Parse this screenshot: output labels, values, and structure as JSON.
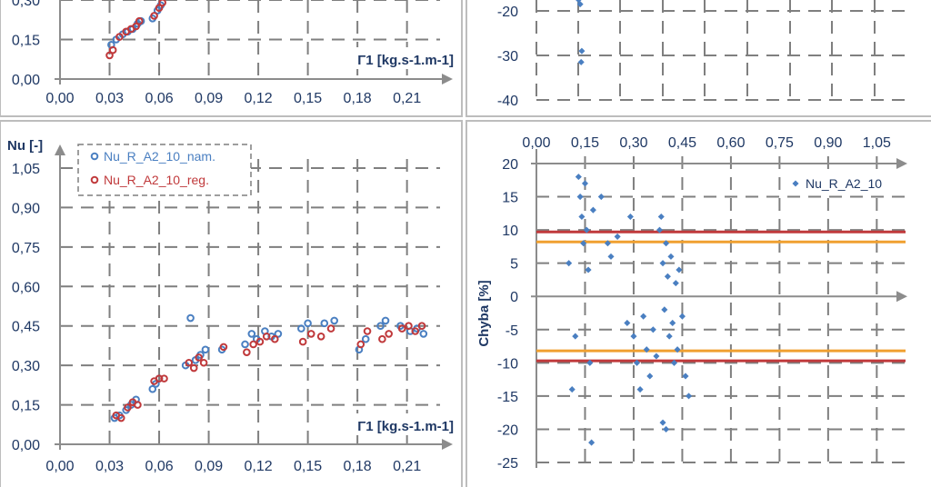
{
  "chart_data": [
    {
      "panel": "top-left",
      "type": "scatter",
      "xlabel": "Γ1 [kg.s-1.m-1]",
      "ylabel": "",
      "x_ticks": [
        "0,00",
        "0,03",
        "0,06",
        "0,09",
        "0,12",
        "0,15",
        "0,18",
        "0,21"
      ],
      "y_ticks": [
        "0,30",
        "0,15",
        "0,00"
      ],
      "xlim": [
        0,
        0.23
      ],
      "ylim": [
        0,
        0.3
      ],
      "grid": true,
      "series": [
        {
          "color": "#4a7fc1",
          "points": [
            [
              0.031,
              0.13
            ],
            [
              0.034,
              0.15
            ],
            [
              0.038,
              0.17
            ],
            [
              0.041,
              0.18
            ],
            [
              0.044,
              0.19
            ],
            [
              0.047,
              0.21
            ],
            [
              0.049,
              0.22
            ],
            [
              0.056,
              0.23
            ],
            [
              0.059,
              0.26
            ],
            [
              0.061,
              0.28
            ]
          ]
        },
        {
          "color": "#c0393b",
          "points": [
            [
              0.03,
              0.09
            ],
            [
              0.032,
              0.11
            ],
            [
              0.036,
              0.16
            ],
            [
              0.04,
              0.18
            ],
            [
              0.043,
              0.19
            ],
            [
              0.046,
              0.2
            ],
            [
              0.048,
              0.22
            ],
            [
              0.057,
              0.24
            ],
            [
              0.06,
              0.27
            ],
            [
              0.062,
              0.29
            ]
          ]
        }
      ]
    },
    {
      "panel": "top-right",
      "type": "scatter",
      "y_ticks": [
        "-20",
        "-30",
        "-40"
      ],
      "ylim": [
        -40,
        -15
      ],
      "grid": true,
      "series": [
        {
          "color": "#4a7fc1",
          "points": [
            [
              0.13,
              -17.5
            ],
            [
              0.135,
              -18.5
            ],
            [
              0.14,
              -29
            ],
            [
              0.138,
              -31.5
            ]
          ]
        }
      ]
    },
    {
      "panel": "bottom-left",
      "type": "scatter",
      "xlabel": "Γ1 [kg.s-1.m-1]",
      "ylabel": "Nu [-]",
      "x_ticks": [
        "0,00",
        "0,03",
        "0,06",
        "0,09",
        "0,12",
        "0,15",
        "0,18",
        "0,21"
      ],
      "y_ticks": [
        "0,00",
        "0,15",
        "0,30",
        "0,45",
        "0,60",
        "0,75",
        "0,90",
        "1,05"
      ],
      "xlim": [
        0,
        0.23
      ],
      "ylim": [
        0,
        1.05
      ],
      "grid": true,
      "legend": "top-left",
      "series": [
        {
          "name": "Nu_R_A2_10_nam.",
          "color": "#4a7fc1",
          "points": [
            [
              0.033,
              0.1
            ],
            [
              0.036,
              0.11
            ],
            [
              0.04,
              0.13
            ],
            [
              0.043,
              0.15
            ],
            [
              0.046,
              0.17
            ],
            [
              0.056,
              0.21
            ],
            [
              0.058,
              0.23
            ],
            [
              0.06,
              0.25
            ],
            [
              0.076,
              0.3
            ],
            [
              0.079,
              0.48
            ],
            [
              0.082,
              0.32
            ],
            [
              0.085,
              0.34
            ],
            [
              0.088,
              0.36
            ],
            [
              0.098,
              0.36
            ],
            [
              0.112,
              0.38
            ],
            [
              0.116,
              0.42
            ],
            [
              0.119,
              0.4
            ],
            [
              0.124,
              0.43
            ],
            [
              0.128,
              0.41
            ],
            [
              0.132,
              0.42
            ],
            [
              0.146,
              0.44
            ],
            [
              0.15,
              0.46
            ],
            [
              0.16,
              0.46
            ],
            [
              0.166,
              0.47
            ],
            [
              0.181,
              0.36
            ],
            [
              0.185,
              0.4
            ],
            [
              0.194,
              0.45
            ],
            [
              0.197,
              0.47
            ],
            [
              0.206,
              0.45
            ],
            [
              0.212,
              0.43
            ],
            [
              0.216,
              0.44
            ],
            [
              0.22,
              0.42
            ]
          ]
        },
        {
          "name": "Nu_R_A2_10_reg.",
          "color": "#c0393b",
          "points": [
            [
              0.034,
              0.11
            ],
            [
              0.037,
              0.1
            ],
            [
              0.041,
              0.14
            ],
            [
              0.044,
              0.16
            ],
            [
              0.047,
              0.15
            ],
            [
              0.057,
              0.24
            ],
            [
              0.06,
              0.25
            ],
            [
              0.063,
              0.25
            ],
            [
              0.078,
              0.31
            ],
            [
              0.081,
              0.29
            ],
            [
              0.084,
              0.33
            ],
            [
              0.087,
              0.31
            ],
            [
              0.099,
              0.37
            ],
            [
              0.113,
              0.35
            ],
            [
              0.117,
              0.38
            ],
            [
              0.121,
              0.39
            ],
            [
              0.125,
              0.41
            ],
            [
              0.13,
              0.4
            ],
            [
              0.147,
              0.39
            ],
            [
              0.152,
              0.42
            ],
            [
              0.158,
              0.41
            ],
            [
              0.164,
              0.44
            ],
            [
              0.182,
              0.38
            ],
            [
              0.186,
              0.43
            ],
            [
              0.195,
              0.4
            ],
            [
              0.199,
              0.42
            ],
            [
              0.207,
              0.44
            ],
            [
              0.211,
              0.45
            ],
            [
              0.215,
              0.43
            ],
            [
              0.219,
              0.45
            ]
          ]
        }
      ]
    },
    {
      "panel": "bottom-right",
      "type": "scatter",
      "ylabel": "Chyba [%]",
      "x_ticks": [
        "0,00",
        "0,15",
        "0,30",
        "0,45",
        "0,60",
        "0,75",
        "0,90",
        "1,05"
      ],
      "y_ticks": [
        "20",
        "15",
        "10",
        "5",
        "0",
        "-5",
        "-10",
        "-15",
        "-20",
        "-25"
      ],
      "xlim": [
        0,
        1.15
      ],
      "ylim": [
        -25,
        20
      ],
      "grid": true,
      "legend": "top-right",
      "series": [
        {
          "name": "Nu_R_A2_10",
          "color": "#4a7fc1",
          "points": [
            [
              0.1,
              5
            ],
            [
              0.11,
              -14
            ],
            [
              0.12,
              -6
            ],
            [
              0.13,
              18
            ],
            [
              0.135,
              15
            ],
            [
              0.14,
              12
            ],
            [
              0.145,
              8
            ],
            [
              0.15,
              17
            ],
            [
              0.155,
              10
            ],
            [
              0.16,
              4
            ],
            [
              0.165,
              -10
            ],
            [
              0.17,
              -22
            ],
            [
              0.175,
              13
            ],
            [
              0.2,
              15
            ],
            [
              0.22,
              8
            ],
            [
              0.23,
              6
            ],
            [
              0.25,
              9
            ],
            [
              0.28,
              -4
            ],
            [
              0.29,
              12
            ],
            [
              0.3,
              -6
            ],
            [
              0.31,
              -10
            ],
            [
              0.32,
              -14
            ],
            [
              0.33,
              -3
            ],
            [
              0.34,
              -8
            ],
            [
              0.35,
              -12
            ],
            [
              0.36,
              -5
            ],
            [
              0.37,
              -9
            ],
            [
              0.38,
              10
            ],
            [
              0.385,
              12
            ],
            [
              0.39,
              5
            ],
            [
              0.395,
              -2
            ],
            [
              0.4,
              8
            ],
            [
              0.405,
              3
            ],
            [
              0.41,
              -6
            ],
            [
              0.415,
              6
            ],
            [
              0.42,
              -4
            ],
            [
              0.425,
              -10
            ],
            [
              0.43,
              2
            ],
            [
              0.435,
              -8
            ],
            [
              0.44,
              4
            ],
            [
              0.45,
              -3
            ],
            [
              0.46,
              -12
            ],
            [
              0.47,
              -15
            ],
            [
              0.39,
              -19
            ],
            [
              0.4,
              -20
            ]
          ]
        }
      ],
      "reference_lines": [
        {
          "y": 9.7,
          "color": "#c0393b"
        },
        {
          "y": 8.2,
          "color": "#f0a030"
        },
        {
          "y": -8.2,
          "color": "#f0a030"
        },
        {
          "y": -9.7,
          "color": "#c0393b"
        }
      ]
    }
  ]
}
